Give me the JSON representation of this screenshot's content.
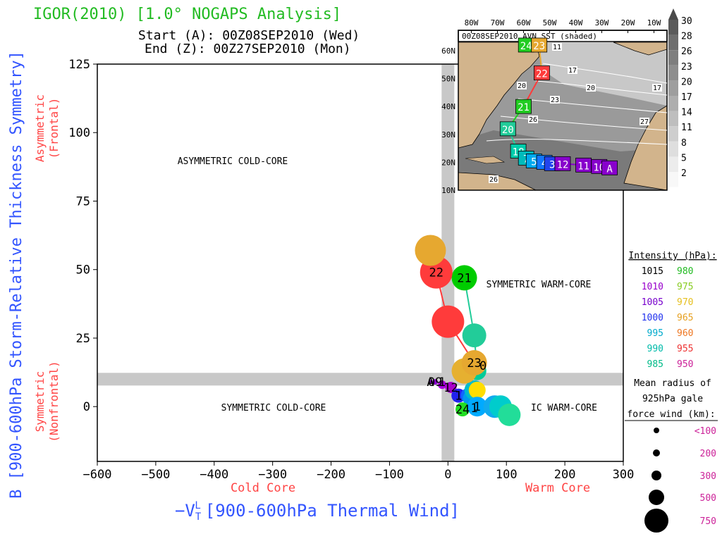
{
  "header": {
    "title": "IGOR(2010) [1.0° NOGAPS Analysis]",
    "start_label": "Start (A): 00Z08SEP2010 (Wed)",
    "end_label": "End (Z): 00Z27SEP2010 (Mon)"
  },
  "colors": {
    "title_green": "#22bb22",
    "axis_blue": "#3355ff",
    "label_red": "#ff4444",
    "band_gray": "#c8c8c8",
    "land": "#d2b48c",
    "legend_magenta": "#cc2299"
  },
  "chart_data": {
    "type": "scatter",
    "title": "IGOR(2010) [1.0° NOGAPS Analysis]",
    "xlabel": "-VT^L [900-600hPa Thermal Wind]",
    "xlabel_prefix": "−V",
    "xlabel_sub": "T",
    "xlabel_sup": "L",
    "xlabel_rest": "[900-600hPa Thermal Wind]",
    "ylabel": "B [900-600hPa Storm-Relative Thickness Symmetry]",
    "xlim": [
      -600,
      300
    ],
    "ylim": [
      -20,
      125
    ],
    "xticks": [
      -600,
      -500,
      -400,
      -300,
      -200,
      -100,
      0,
      100,
      200,
      300
    ],
    "yticks": [
      0,
      25,
      50,
      75,
      100,
      125
    ],
    "xtick_labels": [
      "−600",
      "−500",
      "−400",
      "−300",
      "−200",
      "−100",
      "0",
      "100",
      "200",
      "300"
    ],
    "ytick_labels": [
      "0",
      "25",
      "50",
      "75",
      "100",
      "125"
    ],
    "cold_core_label": "Cold Core",
    "warm_core_label": "Warm Core",
    "y_axis_upper": [
      "Asymmetric",
      "(Frontal)"
    ],
    "y_axis_lower": [
      "Symmetric",
      "(Nonfrontal)"
    ],
    "quadrant_labels": {
      "asym_cold": "ASYMMETRIC COLD-CORE",
      "sym_warm_upper": "SYMMETRIC WARM-CORE",
      "sym_cold": "SYMMETRIC COLD-CORE",
      "sym_warm_lower": "IC WARM-CORE"
    },
    "threshold_bands": {
      "x": 0,
      "y": 10
    },
    "track": [
      {
        "label": "A",
        "x": -30,
        "y": 9,
        "r": 3,
        "color": "#8800cc"
      },
      {
        "label": "09",
        "x": -22,
        "y": 9,
        "r": 4,
        "color": "#8800cc"
      },
      {
        "label": "",
        "x": -10,
        "y": 8,
        "r": 6,
        "color": "#aa00dd"
      },
      {
        "label": "12",
        "x": 5,
        "y": 7,
        "r": 8,
        "color": "#aa00cc"
      },
      {
        "label": "1",
        "x": 18,
        "y": 4,
        "r": 10,
        "color": "#2222ee"
      },
      {
        "label": "",
        "x": 35,
        "y": 4,
        "r": 11,
        "color": "#1166ff"
      },
      {
        "label": "",
        "x": 40,
        "y": 3,
        "r": 12,
        "color": "#0099ee"
      },
      {
        "label": "",
        "x": 45,
        "y": 6,
        "r": 14,
        "color": "#00bbcc"
      },
      {
        "label": "",
        "x": 50,
        "y": 13,
        "r": 13,
        "color": "#00cc99"
      },
      {
        "label": "",
        "x": 28,
        "y": 13,
        "r": 18,
        "color": "#e6b030"
      },
      {
        "label": "",
        "x": 45,
        "y": 26,
        "r": 17,
        "color": "#22cc99"
      },
      {
        "label": "21",
        "x": 28,
        "y": 47,
        "r": 18,
        "color": "#00cc00"
      },
      {
        "label": "22",
        "x": -20,
        "y": 49,
        "r": 23,
        "color": "#ff3b3b"
      },
      {
        "label": "",
        "x": -30,
        "y": 57,
        "r": 22,
        "color": "#e6a830"
      },
      {
        "label": "",
        "x": 0,
        "y": 31,
        "r": 23,
        "color": "#ff3b3b"
      },
      {
        "label": "23",
        "x": 45,
        "y": 16,
        "r": 18,
        "color": "#e6a830"
      },
      {
        "label": "",
        "x": 50,
        "y": 6,
        "r": 12,
        "color": "#ffdd00"
      },
      {
        "label": "24",
        "x": 25,
        "y": -1,
        "r": 10,
        "color": "#22dd22"
      },
      {
        "label": "1",
        "x": 50,
        "y": 0,
        "r": 14,
        "color": "#00aaff"
      },
      {
        "label": "",
        "x": 80,
        "y": 0,
        "r": 16,
        "color": "#11aaee"
      },
      {
        "label": "",
        "x": 90,
        "y": 0,
        "r": 16,
        "color": "#00cccc"
      },
      {
        "label": "",
        "x": 105,
        "y": -3,
        "r": 16,
        "color": "#22dd99"
      }
    ],
    "track_lines": [
      {
        "from": [
          -30,
          57
        ],
        "to": [
          -20,
          49
        ],
        "color": "#e6a830"
      },
      {
        "from": [
          -20,
          49
        ],
        "to": [
          0,
          31
        ],
        "color": "#ff3b3b"
      },
      {
        "from": [
          0,
          31
        ],
        "to": [
          45,
          16
        ],
        "color": "#ff3b3b"
      },
      {
        "from": [
          28,
          47
        ],
        "to": [
          45,
          26
        ],
        "color": "#22cc99"
      },
      {
        "from": [
          45,
          26
        ],
        "to": [
          50,
          13
        ],
        "color": "#22cc99"
      }
    ],
    "track_labels_extra": [
      {
        "text": "0",
        "x": 60,
        "y": 15
      },
      {
        "text": "1",
        "x": 45,
        "y": -0.5
      },
      {
        "text": "1",
        "x": -10,
        "y": 9
      }
    ]
  },
  "inset_map": {
    "title": "00Z08SEP2010 AVN SST (shaded)",
    "lon_labels": [
      "80W",
      "70W",
      "60W",
      "50W",
      "40W",
      "30W",
      "20W",
      "10W"
    ],
    "lat_labels": [
      "60N",
      "50N",
      "40N",
      "30N",
      "20N",
      "10N"
    ],
    "colorbar_values": [
      "30",
      "28",
      "26",
      "23",
      "20",
      "17",
      "14",
      "11",
      "8",
      "5",
      "2"
    ],
    "contour_labels": [
      "17",
      "20",
      "23",
      "26",
      "20",
      "26",
      "11",
      "27",
      "17"
    ],
    "track_points": [
      {
        "label": "24",
        "lon": -59,
        "lat": 62,
        "color": "#22cc22"
      },
      {
        "label": "23",
        "lon": -54,
        "lat": 62,
        "color": "#e6a830"
      },
      {
        "label": "22",
        "lon": -53,
        "lat": 52,
        "color": "#ff3b3b"
      },
      {
        "label": "21",
        "lon": -60,
        "lat": 40,
        "color": "#22cc22"
      },
      {
        "label": "20",
        "lon": -66,
        "lat": 32,
        "color": "#22cc99"
      },
      {
        "label": "18",
        "lon": -62,
        "lat": 24,
        "color": "#00ccaa"
      },
      {
        "label": "7",
        "lon": -59,
        "lat": 21.5,
        "color": "#00bbbb"
      },
      {
        "label": "5",
        "lon": -56,
        "lat": 20.5,
        "color": "#00aaee"
      },
      {
        "label": "4",
        "lon": -52,
        "lat": 20,
        "color": "#1177ff"
      },
      {
        "label": "3",
        "lon": -49,
        "lat": 19.5,
        "color": "#2244ee"
      },
      {
        "label": "12",
        "lon": -45,
        "lat": 19.5,
        "color": "#8800cc"
      },
      {
        "label": "11",
        "lon": -37,
        "lat": 19,
        "color": "#8800cc"
      },
      {
        "label": "10",
        "lon": -31,
        "lat": 18.5,
        "color": "#8800cc"
      },
      {
        "label": "A",
        "lon": -27,
        "lat": 18,
        "color": "#8800cc"
      }
    ]
  },
  "legend": {
    "intensity_title": "Intensity (hPa):",
    "intensity_rows": [
      {
        "left": "1015",
        "left_color": "#000000",
        "right": "980",
        "right_color": "#22bb22"
      },
      {
        "left": "1010",
        "left_color": "#9900cc",
        "right": "975",
        "right_color": "#88cc22"
      },
      {
        "left": "1005",
        "left_color": "#7700cc",
        "right": "970",
        "right_color": "#e6c020"
      },
      {
        "left": "1000",
        "left_color": "#2233ee",
        "right": "965",
        "right_color": "#e6a020"
      },
      {
        "left": "995",
        "left_color": "#00aacc",
        "right": "960",
        "right_color": "#ee7722"
      },
      {
        "left": "990",
        "left_color": "#00bbaa",
        "right": "955",
        "right_color": "#ee3333"
      },
      {
        "left": "985",
        "left_color": "#00bb88",
        "right": "950",
        "right_color": "#cc2299"
      }
    ],
    "radius_title": [
      "Mean radius of",
      "925hPa gale",
      "force wind (km):"
    ],
    "radius_rows": [
      {
        "label": "<100",
        "r": 4
      },
      {
        "label": "200",
        "r": 5
      },
      {
        "label": "300",
        "r": 7
      },
      {
        "label": "500",
        "r": 11
      },
      {
        "label": "750",
        "r": 17
      }
    ]
  }
}
